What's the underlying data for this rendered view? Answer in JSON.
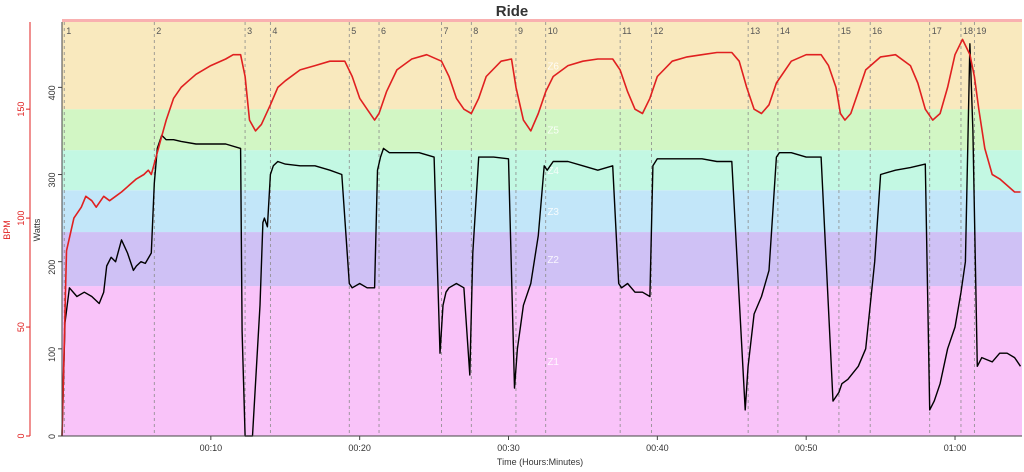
{
  "chart_data": {
    "type": "line",
    "title": "Ride",
    "xlabel": "Time (Hours:Minutes)",
    "x_unit": "minutes",
    "xlim": [
      0,
      64.5
    ],
    "x_ticks": [
      {
        "value": 10,
        "label": "00:10"
      },
      {
        "value": 20,
        "label": "00:20"
      },
      {
        "value": 30,
        "label": "00:30"
      },
      {
        "value": 40,
        "label": "00:40"
      },
      {
        "value": 50,
        "label": "00:50"
      },
      {
        "value": 60,
        "label": "01:00"
      }
    ],
    "watts_axis": {
      "label": "Watts",
      "lim": [
        0,
        475
      ],
      "ticks": [
        0,
        100,
        200,
        300,
        400
      ],
      "color": "#000000"
    },
    "bpm_axis": {
      "label": "BPM",
      "lim": [
        0,
        190
      ],
      "ticks": [
        0,
        50,
        100,
        150
      ],
      "color": "#e02020"
    },
    "zones": [
      {
        "name": "Z1",
        "from": 0,
        "to": 172,
        "color": "#f9c3f9"
      },
      {
        "name": "Z2",
        "from": 172,
        "to": 234,
        "color": "#cfc1f5"
      },
      {
        "name": "Z3",
        "from": 234,
        "to": 282,
        "color": "#c2e6f9"
      },
      {
        "name": "Z4",
        "from": 282,
        "to": 328,
        "color": "#c3f8e3"
      },
      {
        "name": "Z5",
        "from": 328,
        "to": 375,
        "color": "#d2f6c4"
      },
      {
        "name": "Z6",
        "from": 375,
        "to": 475,
        "color": "#f9e9be"
      }
    ],
    "intervals": [
      {
        "label": "1",
        "x": 0.15
      },
      {
        "label": "2",
        "x": 6.2
      },
      {
        "label": "3",
        "x": 12.3
      },
      {
        "label": "4",
        "x": 14.0
      },
      {
        "label": "5",
        "x": 19.3
      },
      {
        "label": "6",
        "x": 21.3
      },
      {
        "label": "7",
        "x": 25.5
      },
      {
        "label": "8",
        "x": 27.5
      },
      {
        "label": "9",
        "x": 30.5
      },
      {
        "label": "10",
        "x": 32.5
      },
      {
        "label": "11",
        "x": 37.5
      },
      {
        "label": "12",
        "x": 39.6
      },
      {
        "label": "13",
        "x": 46.1
      },
      {
        "label": "14",
        "x": 48.1
      },
      {
        "label": "15",
        "x": 52.2
      },
      {
        "label": "16",
        "x": 54.3
      },
      {
        "label": "17",
        "x": 58.3
      },
      {
        "label": "18",
        "x": 60.4
      },
      {
        "label": "19",
        "x": 61.3
      }
    ],
    "series": [
      {
        "name": "Watts",
        "axis": "watts",
        "color": "#000000",
        "x": [
          0,
          0.2,
          0.5,
          1.0,
          1.5,
          2.0,
          2.5,
          2.8,
          3.0,
          3.3,
          3.6,
          4.0,
          4.4,
          4.8,
          5.0,
          5.3,
          5.6,
          6.0,
          6.2,
          6.4,
          6.7,
          7.0,
          7.5,
          8.0,
          9.0,
          10.0,
          11.0,
          12.0,
          12.1,
          12.3,
          12.5,
          12.8,
          13.3,
          13.5,
          13.6,
          13.8,
          14.0,
          14.2,
          14.5,
          15.0,
          16.0,
          17.0,
          18.0,
          18.8,
          19.3,
          19.5,
          20.0,
          20.5,
          21.0,
          21.2,
          21.4,
          21.6,
          22.0,
          23.0,
          24.0,
          25.0,
          25.4,
          25.6,
          25.8,
          26.0,
          26.5,
          27.0,
          27.4,
          27.6,
          28.0,
          29.0,
          30.0,
          30.4,
          30.6,
          30.8,
          31.0,
          31.5,
          32.0,
          32.4,
          32.6,
          32.8,
          33.0,
          34.0,
          35.0,
          36.0,
          37.0,
          37.4,
          37.6,
          38.0,
          38.5,
          39.0,
          39.5,
          39.7,
          40.0,
          41.0,
          42.0,
          43.0,
          44.0,
          45.0,
          45.9,
          46.1,
          46.3,
          46.5,
          47.0,
          47.5,
          48.0,
          48.2,
          48.5,
          49.0,
          50.0,
          51.0,
          51.8,
          52.2,
          52.4,
          52.8,
          53.5,
          54.0,
          54.3,
          54.6,
          55.0,
          56.0,
          57.0,
          58.0,
          58.3,
          58.6,
          59.0,
          59.5,
          60.0,
          60.4,
          60.7,
          61.0,
          61.2,
          61.5,
          61.8,
          62.5,
          63.0,
          63.5,
          64.0,
          64.4
        ],
        "values": [
          0,
          130,
          170,
          160,
          165,
          160,
          152,
          165,
          195,
          205,
          200,
          225,
          210,
          190,
          195,
          200,
          198,
          210,
          290,
          330,
          345,
          340,
          340,
          338,
          335,
          335,
          335,
          330,
          120,
          0,
          0,
          0,
          150,
          245,
          250,
          240,
          300,
          310,
          315,
          312,
          310,
          310,
          305,
          300,
          175,
          170,
          175,
          170,
          170,
          305,
          320,
          330,
          325,
          325,
          325,
          320,
          95,
          150,
          165,
          170,
          175,
          170,
          70,
          210,
          320,
          320,
          318,
          55,
          100,
          125,
          150,
          175,
          230,
          310,
          305,
          310,
          315,
          315,
          310,
          305,
          310,
          175,
          170,
          175,
          165,
          165,
          160,
          310,
          318,
          318,
          318,
          318,
          315,
          315,
          30,
          80,
          110,
          140,
          160,
          190,
          320,
          325,
          325,
          325,
          320,
          320,
          40,
          50,
          60,
          65,
          80,
          100,
          150,
          200,
          300,
          305,
          308,
          312,
          30,
          40,
          60,
          100,
          125,
          165,
          200,
          450,
          350,
          80,
          90,
          85,
          95,
          95,
          90,
          80
        ]
      },
      {
        "name": "BPM",
        "axis": "bpm",
        "color": "#e02020",
        "x": [
          0,
          0.3,
          0.8,
          1.3,
          1.6,
          2.0,
          2.3,
          2.8,
          3.2,
          3.6,
          4.0,
          4.5,
          5.0,
          5.5,
          5.8,
          6.0,
          6.2,
          6.6,
          7.0,
          7.5,
          8.0,
          8.5,
          9.0,
          10.0,
          11.0,
          11.5,
          12.0,
          12.3,
          12.6,
          13.0,
          13.4,
          14.0,
          14.5,
          15.0,
          16.0,
          17.0,
          18.0,
          19.0,
          19.5,
          20.0,
          20.5,
          21.0,
          21.3,
          21.8,
          22.5,
          23.5,
          24.5,
          25.5,
          26.0,
          26.5,
          27.0,
          27.5,
          28.0,
          28.5,
          29.5,
          30.2,
          30.5,
          31.0,
          31.5,
          32.0,
          32.5,
          33.0,
          34.0,
          35.0,
          36.0,
          37.0,
          37.5,
          38.0,
          38.5,
          39.0,
          39.5,
          40.0,
          41.0,
          42.0,
          43.0,
          44.0,
          45.0,
          45.5,
          46.0,
          46.5,
          47.0,
          47.5,
          48.0,
          49.0,
          50.0,
          51.0,
          51.5,
          52.0,
          52.3,
          52.6,
          53.0,
          53.5,
          54.0,
          55.0,
          56.0,
          57.0,
          57.5,
          58.0,
          58.5,
          59.0,
          59.5,
          60.0,
          60.5,
          61.0,
          61.3,
          61.6,
          62.0,
          62.5,
          63.0,
          63.5,
          64.0,
          64.4
        ],
        "values": [
          0,
          85,
          100,
          105,
          110,
          108,
          105,
          110,
          108,
          110,
          112,
          115,
          118,
          120,
          122,
          120,
          125,
          135,
          145,
          155,
          160,
          163,
          166,
          170,
          173,
          175,
          175,
          165,
          145,
          140,
          143,
          152,
          160,
          163,
          168,
          170,
          172,
          172,
          165,
          155,
          150,
          145,
          148,
          158,
          168,
          173,
          175,
          172,
          165,
          155,
          150,
          148,
          155,
          165,
          172,
          173,
          160,
          145,
          140,
          148,
          158,
          165,
          170,
          172,
          173,
          173,
          168,
          158,
          150,
          148,
          155,
          165,
          172,
          174,
          175,
          176,
          176,
          172,
          160,
          150,
          148,
          152,
          162,
          172,
          175,
          175,
          170,
          160,
          148,
          145,
          148,
          158,
          168,
          174,
          175,
          170,
          162,
          150,
          145,
          148,
          160,
          175,
          182,
          175,
          165,
          150,
          132,
          120,
          118,
          115,
          112,
          112
        ]
      }
    ]
  }
}
